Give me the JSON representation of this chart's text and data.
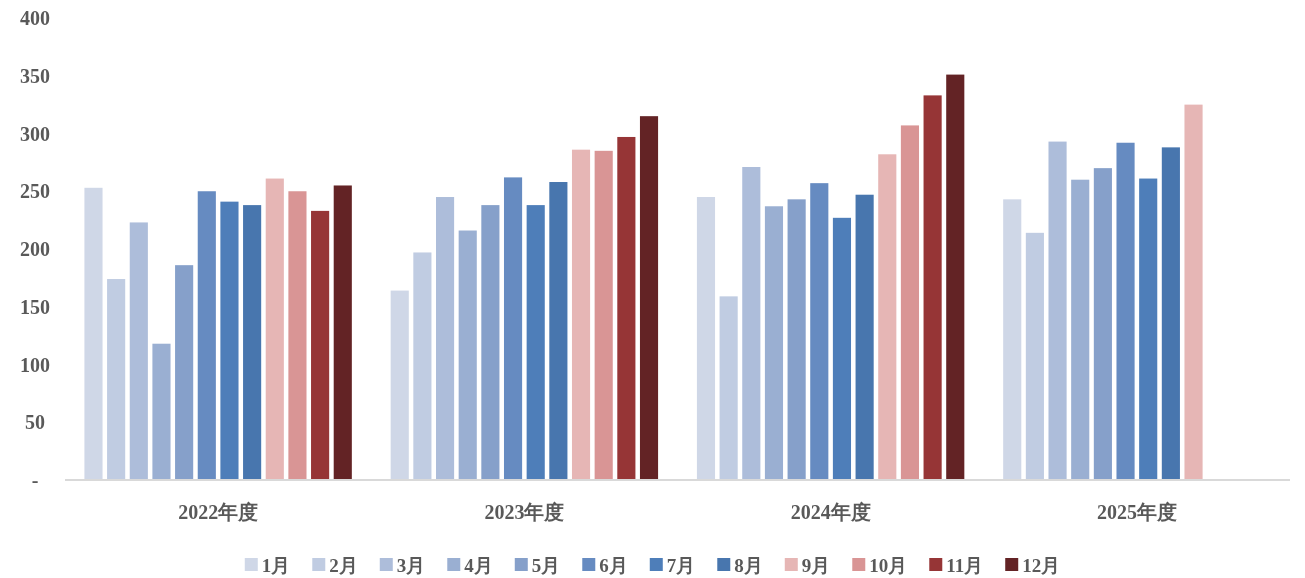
{
  "chart_data": {
    "type": "bar",
    "categories": [
      "2022年度",
      "2023年度",
      "2024年度",
      "2025年度"
    ],
    "ylim": [
      0,
      400
    ],
    "yticks": [
      {
        "value": 0,
        "label": "-"
      },
      50,
      100,
      150,
      200,
      250,
      300,
      350,
      400
    ],
    "grid": false,
    "legend": "bottom",
    "series": [
      {
        "name": "1月",
        "color": "#cfd7e7",
        "values": [
          253,
          164,
          245,
          243
        ]
      },
      {
        "name": "2月",
        "color": "#c0cce2",
        "values": [
          174,
          197,
          159,
          214
        ]
      },
      {
        "name": "3月",
        "color": "#adbdda",
        "values": [
          223,
          245,
          271,
          293
        ]
      },
      {
        "name": "4月",
        "color": "#9aafd2",
        "values": [
          118,
          216,
          237,
          260
        ]
      },
      {
        "name": "5月",
        "color": "#86a0ca",
        "values": [
          186,
          238,
          243,
          270
        ]
      },
      {
        "name": "6月",
        "color": "#668bc1",
        "values": [
          250,
          262,
          257,
          292
        ]
      },
      {
        "name": "7月",
        "color": "#4e7eb9",
        "values": [
          241,
          238,
          227,
          261
        ]
      },
      {
        "name": "8月",
        "color": "#4876ae",
        "values": [
          238,
          258,
          247,
          288
        ]
      },
      {
        "name": "9月",
        "color": "#e6b6b5",
        "values": [
          261,
          286,
          282,
          325
        ]
      },
      {
        "name": "10月",
        "color": "#d99595",
        "values": [
          250,
          285,
          307,
          null
        ]
      },
      {
        "name": "11月",
        "color": "#963536",
        "values": [
          233,
          297,
          333,
          null
        ]
      },
      {
        "name": "12月",
        "color": "#632325",
        "values": [
          255,
          315,
          351,
          null
        ]
      }
    ]
  }
}
